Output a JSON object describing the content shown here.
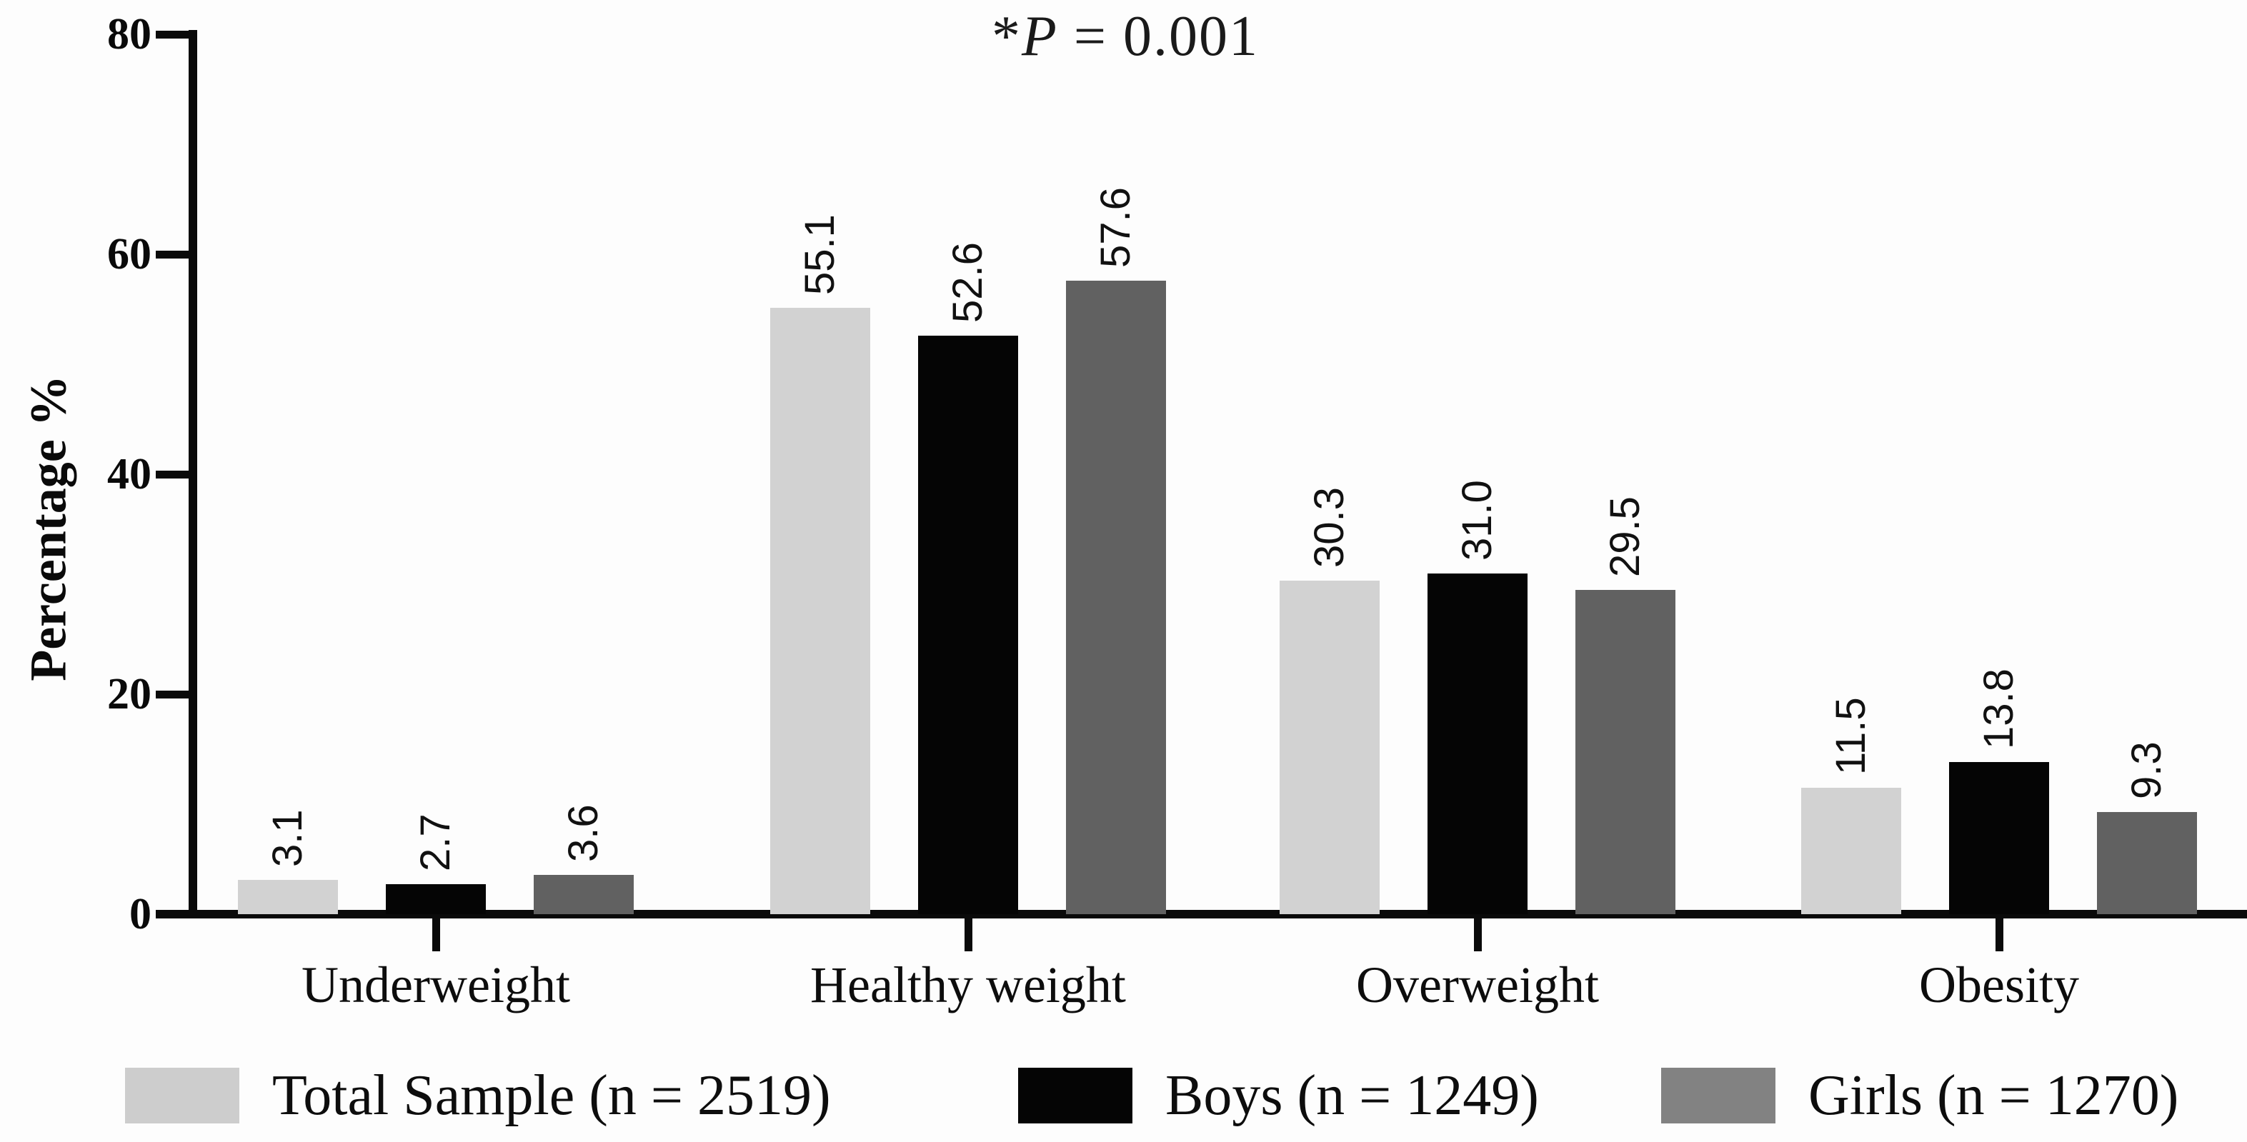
{
  "chart_data": {
    "type": "bar",
    "title": "*P = 0.001",
    "title_parts": {
      "prefix": "*",
      "symbol": "P",
      "rest": " = 0.001"
    },
    "ylabel": "Percentage %",
    "xlabel": "",
    "ylim": [
      0,
      80
    ],
    "y_ticks": [
      0,
      20,
      40,
      60,
      80
    ],
    "grid": false,
    "legend_position": "bottom",
    "categories": [
      "Underweight",
      "Healthy weight",
      "Overweight",
      "Obesity"
    ],
    "series": [
      {
        "name": "Total Sample (n = 2519)",
        "color": "#d2d2d2",
        "legend_color": "#cdcdcd",
        "values": [
          3.1,
          55.1,
          30.3,
          11.5
        ],
        "labels": [
          "3.1",
          "55.1",
          "30.3",
          "11.5"
        ]
      },
      {
        "name": "Boys (n = 1249)",
        "color": "#050505",
        "legend_color": "#050505",
        "values": [
          2.7,
          52.6,
          31.0,
          13.8
        ],
        "labels": [
          "2.7",
          "52.6",
          "31.0",
          "13.8"
        ]
      },
      {
        "name": "Girls (n = 1270)",
        "color": "#616161",
        "legend_color": "#828282",
        "values": [
          3.6,
          57.6,
          29.5,
          9.3
        ],
        "labels": [
          "3.6",
          "57.6",
          "29.5",
          "9.3"
        ]
      }
    ]
  }
}
